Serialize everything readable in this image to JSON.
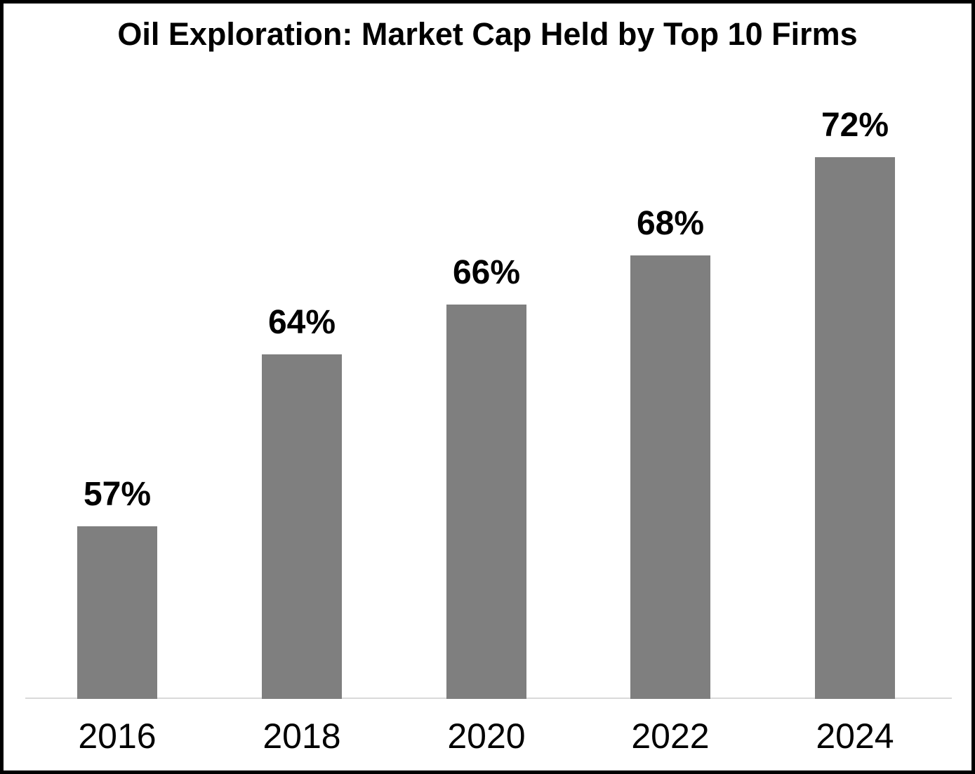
{
  "chart_data": {
    "type": "bar",
    "title": "Oil Exploration: Market Cap Held by Top 10 Firms",
    "categories": [
      "2016",
      "2018",
      "2020",
      "2022",
      "2024"
    ],
    "values": [
      57,
      64,
      66,
      68,
      72
    ],
    "data_labels": [
      "57%",
      "64%",
      "66%",
      "68%",
      "72%"
    ],
    "xlabel": "",
    "ylabel": "",
    "ylim": [
      50,
      75
    ],
    "y_axis_visible": false,
    "grid": false,
    "legend": "none",
    "colors": {
      "bar": "#7F7F7F",
      "axis_line": "#D9D9D9",
      "text": "#000000",
      "background": "#FFFFFF",
      "frame_border": "#000000"
    }
  }
}
